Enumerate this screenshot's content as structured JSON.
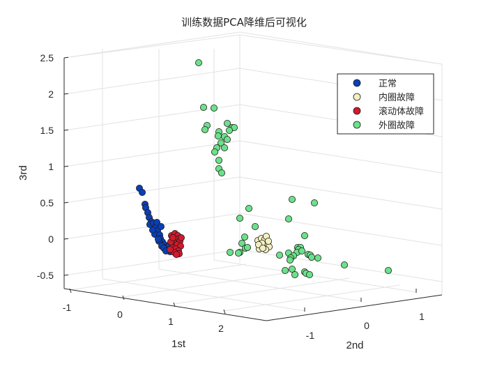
{
  "chart_data": {
    "type": "scatter",
    "title": "训练数据PCA降维后可视化",
    "xlabel": "1st",
    "ylabel": "2nd",
    "zlabel": "3rd",
    "xticks": [
      "-1",
      "0",
      "1",
      "2"
    ],
    "yticks": [
      "-1",
      "0",
      "1"
    ],
    "zticks": [
      "-0.5",
      "0",
      "0.5",
      "1",
      "1.5",
      "2",
      "2.5"
    ],
    "grid": true,
    "legend_position": "top-right",
    "series": [
      {
        "name": "正常",
        "color": "#0B3FB5",
        "points_screen": [
          [
            200,
            270
          ],
          [
            204,
            276
          ],
          [
            208,
            293
          ],
          [
            209,
            298
          ],
          [
            212,
            305
          ],
          [
            214,
            312
          ],
          [
            217,
            318
          ],
          [
            215,
            322
          ],
          [
            220,
            320
          ],
          [
            223,
            326
          ],
          [
            226,
            331
          ],
          [
            222,
            336
          ],
          [
            229,
            337
          ],
          [
            230,
            342
          ],
          [
            233,
            347
          ],
          [
            236,
            351
          ],
          [
            239,
            355
          ],
          [
            228,
            346
          ],
          [
            232,
            353
          ],
          [
            241,
            359
          ],
          [
            244,
            361
          ],
          [
            219,
            330
          ],
          [
            227,
            343
          ],
          [
            235,
            356
          ],
          [
            238,
            360
          ],
          [
            225,
            319
          ],
          [
            231,
            325
          ],
          [
            243,
            352
          ]
        ]
      },
      {
        "name": "内圈故障",
        "color": "#F2EFC2",
        "points_screen": [
          [
            370,
            345
          ],
          [
            375,
            342
          ],
          [
            380,
            343
          ],
          [
            382,
            339
          ],
          [
            378,
            352
          ],
          [
            374,
            355
          ],
          [
            384,
            350
          ],
          [
            386,
            354
          ],
          [
            372,
            357
          ],
          [
            381,
            358
          ],
          [
            376,
            349
          ],
          [
            385,
            346
          ],
          [
            371,
            351
          ],
          [
            377,
            356
          ]
        ]
      },
      {
        "name": "滚动体故障",
        "color": "#D21A2C",
        "points_screen": [
          [
            246,
            338
          ],
          [
            251,
            335
          ],
          [
            255,
            338
          ],
          [
            253,
            343
          ],
          [
            258,
            346
          ],
          [
            249,
            348
          ],
          [
            254,
            351
          ],
          [
            259,
            353
          ],
          [
            247,
            355
          ],
          [
            252,
            357
          ],
          [
            256,
            360
          ],
          [
            250,
            362
          ],
          [
            257,
            364
          ],
          [
            245,
            347
          ],
          [
            260,
            341
          ],
          [
            248,
            341
          ],
          [
            244,
            358
          ],
          [
            253,
            365
          ]
        ]
      },
      {
        "name": "外圈故障",
        "color": "#6CE08A",
        "points_screen": [
          [
            285,
            90
          ],
          [
            292,
            154
          ],
          [
            307,
            155
          ],
          [
            297,
            180
          ],
          [
            294,
            186
          ],
          [
            326,
            177
          ],
          [
            333,
            183
          ],
          [
            336,
            183
          ],
          [
            314,
            189
          ],
          [
            329,
            187
          ],
          [
            322,
            196
          ],
          [
            313,
            195
          ],
          [
            317,
            205
          ],
          [
            326,
            200
          ],
          [
            311,
            212
          ],
          [
            322,
            212
          ],
          [
            308,
            218
          ],
          [
            314,
            230
          ],
          [
            314,
            242
          ],
          [
            318,
            248
          ],
          [
            344,
            313
          ],
          [
            357,
            299
          ],
          [
            366,
            325
          ],
          [
            351,
            340
          ],
          [
            347,
            349
          ],
          [
            352,
            356
          ],
          [
            355,
            355
          ],
          [
            344,
            362
          ],
          [
            342,
            363
          ],
          [
            330,
            362
          ],
          [
            414,
            314
          ],
          [
            419,
            286
          ],
          [
            451,
            291
          ],
          [
            437,
            338
          ],
          [
            427,
            355
          ],
          [
            431,
            355
          ],
          [
            428,
            358
          ],
          [
            426,
            362
          ],
          [
            433,
            360
          ],
          [
            414,
            363
          ],
          [
            421,
            367
          ],
          [
            442,
            365
          ],
          [
            445,
            366
          ],
          [
            447,
            369
          ],
          [
            456,
            370
          ],
          [
            417,
            370
          ],
          [
            409,
            388
          ],
          [
            419,
            386
          ],
          [
            437,
            390
          ],
          [
            439,
            392
          ],
          [
            444,
            394
          ],
          [
            423,
            394
          ],
          [
            494,
            380
          ],
          [
            557,
            388
          ],
          [
            416,
            373
          ],
          [
            401,
            366
          ]
        ]
      }
    ]
  }
}
